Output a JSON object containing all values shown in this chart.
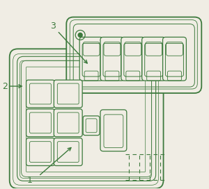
{
  "bg_color": "#f0ede4",
  "line_color": "#3d7a3d",
  "text_color": "#3d7a3d",
  "figsize": [
    3.0,
    2.72
  ],
  "dpi": 100,
  "lw_main": 1.3,
  "lw_thin": 0.8,
  "lw_vt": 0.6
}
